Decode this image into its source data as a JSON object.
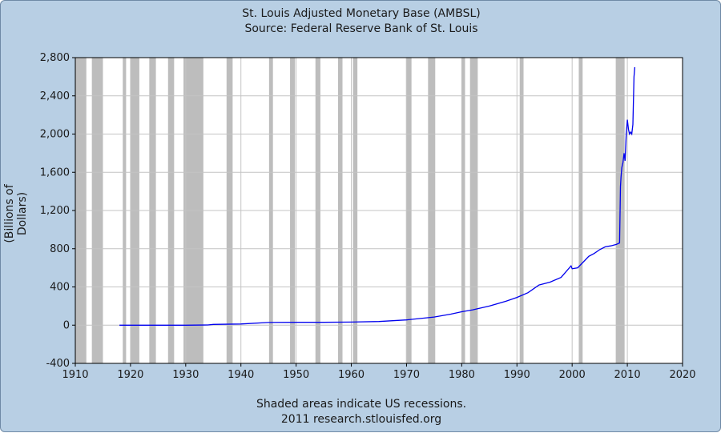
{
  "chart_data": {
    "type": "line",
    "title": "St. Louis Adjusted Monetary Base (AMBSL)",
    "subtitle": "Source: Federal Reserve Bank of St. Louis",
    "xlabel": "",
    "ylabel": "(Billions of Dollars)",
    "footnote": "Shaded areas indicate US recessions.",
    "credit": "2011 research.stlouisfed.org",
    "xlim": [
      1910,
      2020
    ],
    "ylim": [
      -400,
      2800
    ],
    "xticks": [
      1910,
      1920,
      1930,
      1940,
      1950,
      1960,
      1970,
      1980,
      1990,
      2000,
      2010,
      2020
    ],
    "yticks": [
      -400,
      0,
      400,
      800,
      1200,
      1600,
      2000,
      2400,
      2800
    ],
    "ytick_labels": [
      "-400",
      "0",
      "400",
      "800",
      "1,200",
      "1,600",
      "2,000",
      "2,400",
      "2,800"
    ],
    "grid": true,
    "line_color": "#0000ee",
    "plot_background": "#ffffff",
    "recession_color": "#bdbdbd",
    "recessions": [
      [
        1910.0,
        1912.0
      ],
      [
        1913.0,
        1915.0
      ],
      [
        1918.6,
        1919.2
      ],
      [
        1920.0,
        1921.6
      ],
      [
        1923.4,
        1924.6
      ],
      [
        1926.8,
        1927.9
      ],
      [
        1929.6,
        1933.2
      ],
      [
        1937.4,
        1938.5
      ],
      [
        1945.1,
        1945.8
      ],
      [
        1948.9,
        1949.8
      ],
      [
        1953.5,
        1954.4
      ],
      [
        1957.6,
        1958.4
      ],
      [
        1960.3,
        1961.1
      ],
      [
        1969.9,
        1970.9
      ],
      [
        1973.9,
        1975.2
      ],
      [
        1980.0,
        1980.6
      ],
      [
        1981.5,
        1982.9
      ],
      [
        1990.5,
        1991.2
      ],
      [
        2001.2,
        2001.9
      ],
      [
        2007.9,
        2009.5
      ]
    ],
    "series": [
      {
        "x": [
          1918,
          1925,
          1930,
          1934,
          1935,
          1940,
          1945,
          1950,
          1955,
          1960,
          1965,
          1970,
          1975,
          1978,
          1980,
          1982,
          1985,
          1988,
          1990,
          1992,
          1994,
          1996,
          1998,
          1999.8,
          2000,
          2001,
          2002,
          2003,
          2004,
          2005,
          2006,
          2007,
          2008,
          2008.6,
          2008.75,
          2008.85,
          2009,
          2009.2,
          2009.4,
          2009.6,
          2009.8,
          2010,
          2010.2,
          2010.4,
          2010.6,
          2010.8,
          2011,
          2011.2,
          2011.35
        ],
        "y": [
          0,
          0,
          0,
          2,
          8,
          12,
          28,
          30,
          30,
          32,
          38,
          55,
          85,
          115,
          140,
          160,
          200,
          250,
          290,
          340,
          420,
          450,
          500,
          620,
          590,
          600,
          660,
          720,
          750,
          790,
          820,
          830,
          845,
          860,
          1450,
          1550,
          1650,
          1700,
          1800,
          1720,
          2000,
          2150,
          2050,
          2000,
          2020,
          2000,
          2100,
          2600,
          2700
        ]
      }
    ]
  }
}
